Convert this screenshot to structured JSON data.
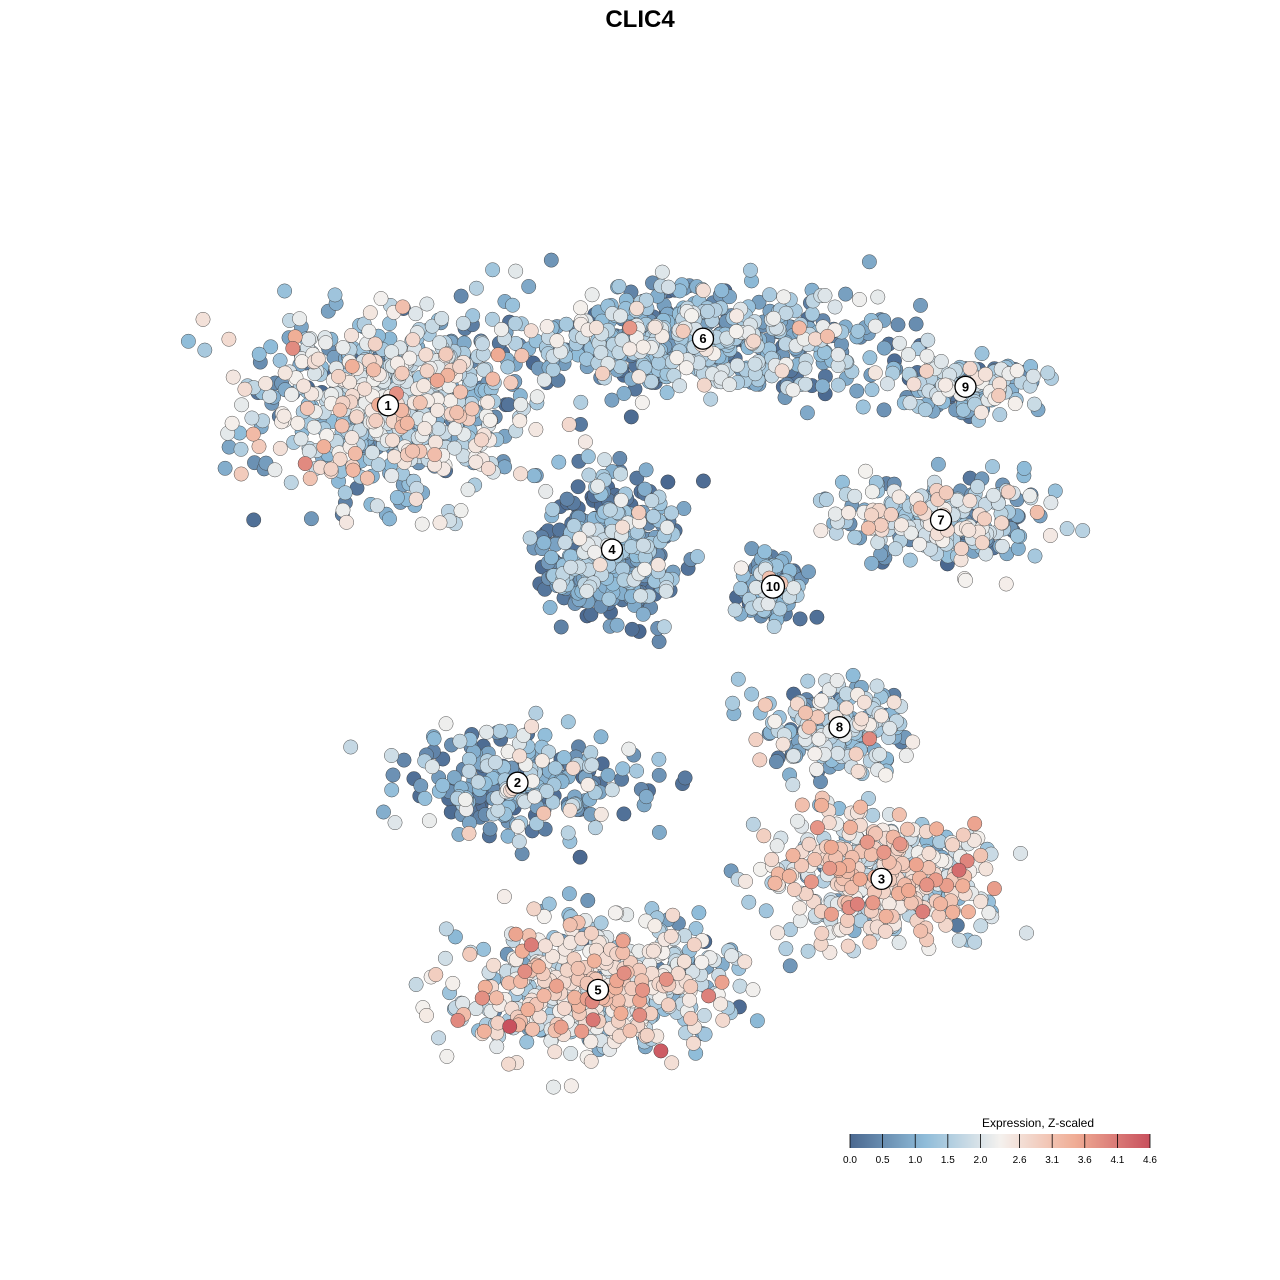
{
  "chart_data": {
    "type": "scatter",
    "title": "CLIC4",
    "xlabel": "",
    "ylabel": "",
    "grid": false,
    "legend_position": "bottom-right",
    "legend": {
      "title": "Expression, Z-scaled",
      "range": [
        0.0,
        4.6
      ],
      "ticks": [
        "0.0",
        "0.5",
        "1.0",
        "1.5",
        "2.0",
        "2.6",
        "3.1",
        "3.6",
        "4.1",
        "4.6"
      ],
      "colors": [
        "#4a6890",
        "#8fbcd9",
        "#f4f1ee",
        "#f0ad95",
        "#c8505d"
      ]
    },
    "clusters": [
      {
        "label": "1",
        "x": -7.2,
        "y": 6.1,
        "mean_expression": 1.6,
        "spread": [
          2.6,
          1.6
        ],
        "n": 700
      },
      {
        "label": "2",
        "x": -3.5,
        "y": -4.1,
        "mean_expression": 0.9,
        "spread": [
          2.3,
          1.0
        ],
        "n": 260
      },
      {
        "label": "3",
        "x": 6.9,
        "y": -6.7,
        "mean_expression": 2.3,
        "spread": [
          2.1,
          1.2
        ],
        "n": 420
      },
      {
        "label": "4",
        "x": -0.8,
        "y": 2.2,
        "mean_expression": 0.6,
        "spread": [
          1.2,
          1.2
        ],
        "n": 480
      },
      {
        "label": "5",
        "x": -1.2,
        "y": -9.7,
        "mean_expression": 2.1,
        "spread": [
          2.6,
          1.2
        ],
        "n": 560
      },
      {
        "label": "6",
        "x": 1.8,
        "y": 7.9,
        "mean_expression": 1.1,
        "spread": [
          3.5,
          1.0
        ],
        "n": 560
      },
      {
        "label": "7",
        "x": 8.6,
        "y": 3.0,
        "mean_expression": 1.5,
        "spread": [
          2.0,
          0.8
        ],
        "n": 280
      },
      {
        "label": "8",
        "x": 5.7,
        "y": -2.6,
        "mean_expression": 1.4,
        "spread": [
          1.5,
          0.8
        ],
        "n": 200
      },
      {
        "label": "9",
        "x": 9.3,
        "y": 6.6,
        "mean_expression": 1.2,
        "spread": [
          1.4,
          0.5
        ],
        "n": 170
      },
      {
        "label": "10",
        "x": 3.8,
        "y": 1.2,
        "mean_expression": 0.8,
        "spread": [
          0.6,
          0.6
        ],
        "n": 130
      }
    ]
  }
}
